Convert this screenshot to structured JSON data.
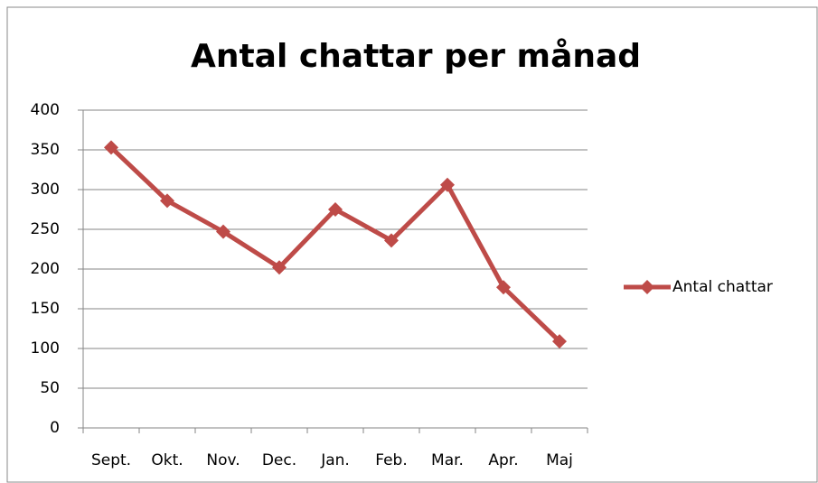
{
  "chart_data": {
    "type": "line",
    "title": "Antal chattar per månad",
    "categories": [
      "Sept.",
      "Okt.",
      "Nov.",
      "Dec.",
      "Jan.",
      "Feb.",
      "Mar.",
      "Apr.",
      "Maj"
    ],
    "series": [
      {
        "name": "Antal chattar",
        "color": "#be4b48",
        "values": [
          353,
          286,
          247,
          202,
          275,
          236,
          306,
          177,
          109
        ]
      }
    ],
    "ylim": [
      0,
      400
    ],
    "yticks": [
      0,
      50,
      100,
      150,
      200,
      250,
      300,
      350,
      400
    ],
    "grid": true,
    "legend": "right"
  }
}
